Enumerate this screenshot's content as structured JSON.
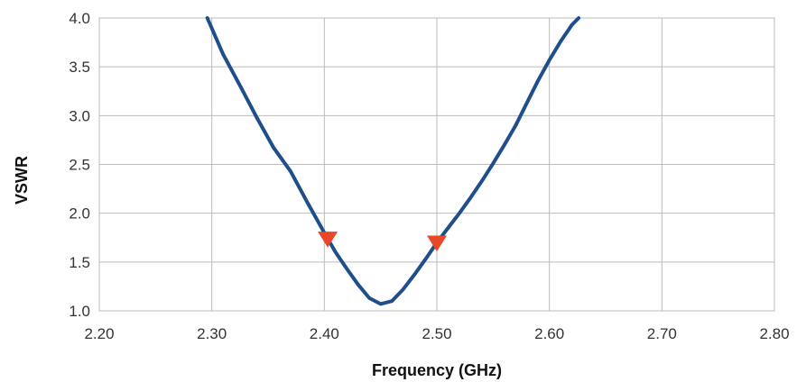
{
  "chart_data": {
    "type": "line",
    "title": "",
    "xlabel": "Frequency (GHz)",
    "ylabel": "VSWR",
    "xlim": [
      2.2,
      2.8
    ],
    "ylim": [
      1.0,
      4.0
    ],
    "x_ticks": [
      "2.20",
      "2.30",
      "2.40",
      "2.50",
      "2.60",
      "2.70",
      "2.80"
    ],
    "y_ticks": [
      "1.0",
      "1.5",
      "2.0",
      "2.5",
      "3.0",
      "3.5",
      "4.0"
    ],
    "grid": true,
    "legend": "none",
    "series": [
      {
        "color": "#1f4e8c",
        "x": [
          2.296,
          2.31,
          2.325,
          2.34,
          2.355,
          2.37,
          2.385,
          2.4,
          2.41,
          2.42,
          2.43,
          2.44,
          2.45,
          2.46,
          2.47,
          2.48,
          2.49,
          2.5,
          2.51,
          2.52,
          2.53,
          2.54,
          2.55,
          2.56,
          2.57,
          2.58,
          2.59,
          2.6,
          2.61,
          2.62,
          2.626
        ],
        "y": [
          4.0,
          3.63,
          3.31,
          2.98,
          2.67,
          2.43,
          2.11,
          1.8,
          1.6,
          1.43,
          1.27,
          1.13,
          1.07,
          1.1,
          1.22,
          1.37,
          1.53,
          1.7,
          1.85,
          2.0,
          2.16,
          2.33,
          2.51,
          2.7,
          2.9,
          3.13,
          3.36,
          3.57,
          3.76,
          3.93,
          4.0
        ]
      }
    ],
    "markers": [
      {
        "x": 2.403,
        "y": 1.74,
        "shape": "triangle-down",
        "color": "#e8472a"
      },
      {
        "x": 2.5,
        "y": 1.7,
        "shape": "triangle-down",
        "color": "#e8472a"
      }
    ],
    "colors": {
      "grid": "#bbbbbb",
      "axis": "#888888",
      "line": "#1f4e8c",
      "marker": "#e8472a"
    }
  }
}
